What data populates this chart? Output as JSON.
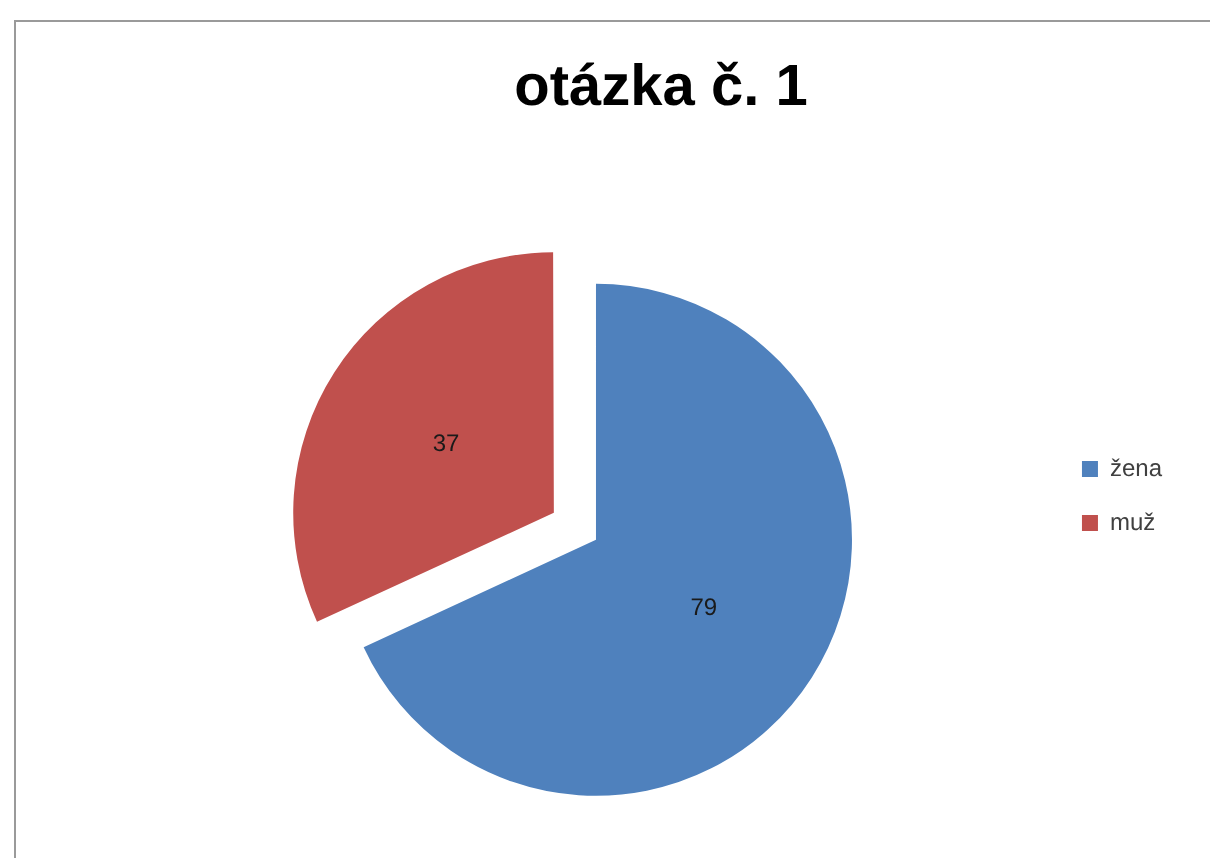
{
  "chart_data": {
    "type": "pie",
    "title": "otázka č. 1",
    "categories": [
      "žena",
      "muž"
    ],
    "values": [
      79,
      37
    ],
    "colors": [
      "#4f81bd",
      "#c0504d"
    ],
    "data_labels": true,
    "legend": "right"
  }
}
